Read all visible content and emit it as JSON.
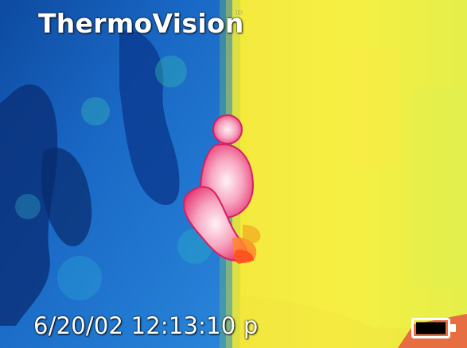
{
  "app": {
    "brand": "ThermoVision",
    "trademark": "™"
  },
  "overlay": {
    "timestamp": "6/20/02 12:13:10 p",
    "battery_icon": "battery-icon"
  },
  "palette": {
    "cold": "#0a3f8f",
    "cool": "#1f6fcc",
    "warm": "#e5e23a",
    "hot": "#e63a73",
    "hottest": "#ffd9e8"
  }
}
